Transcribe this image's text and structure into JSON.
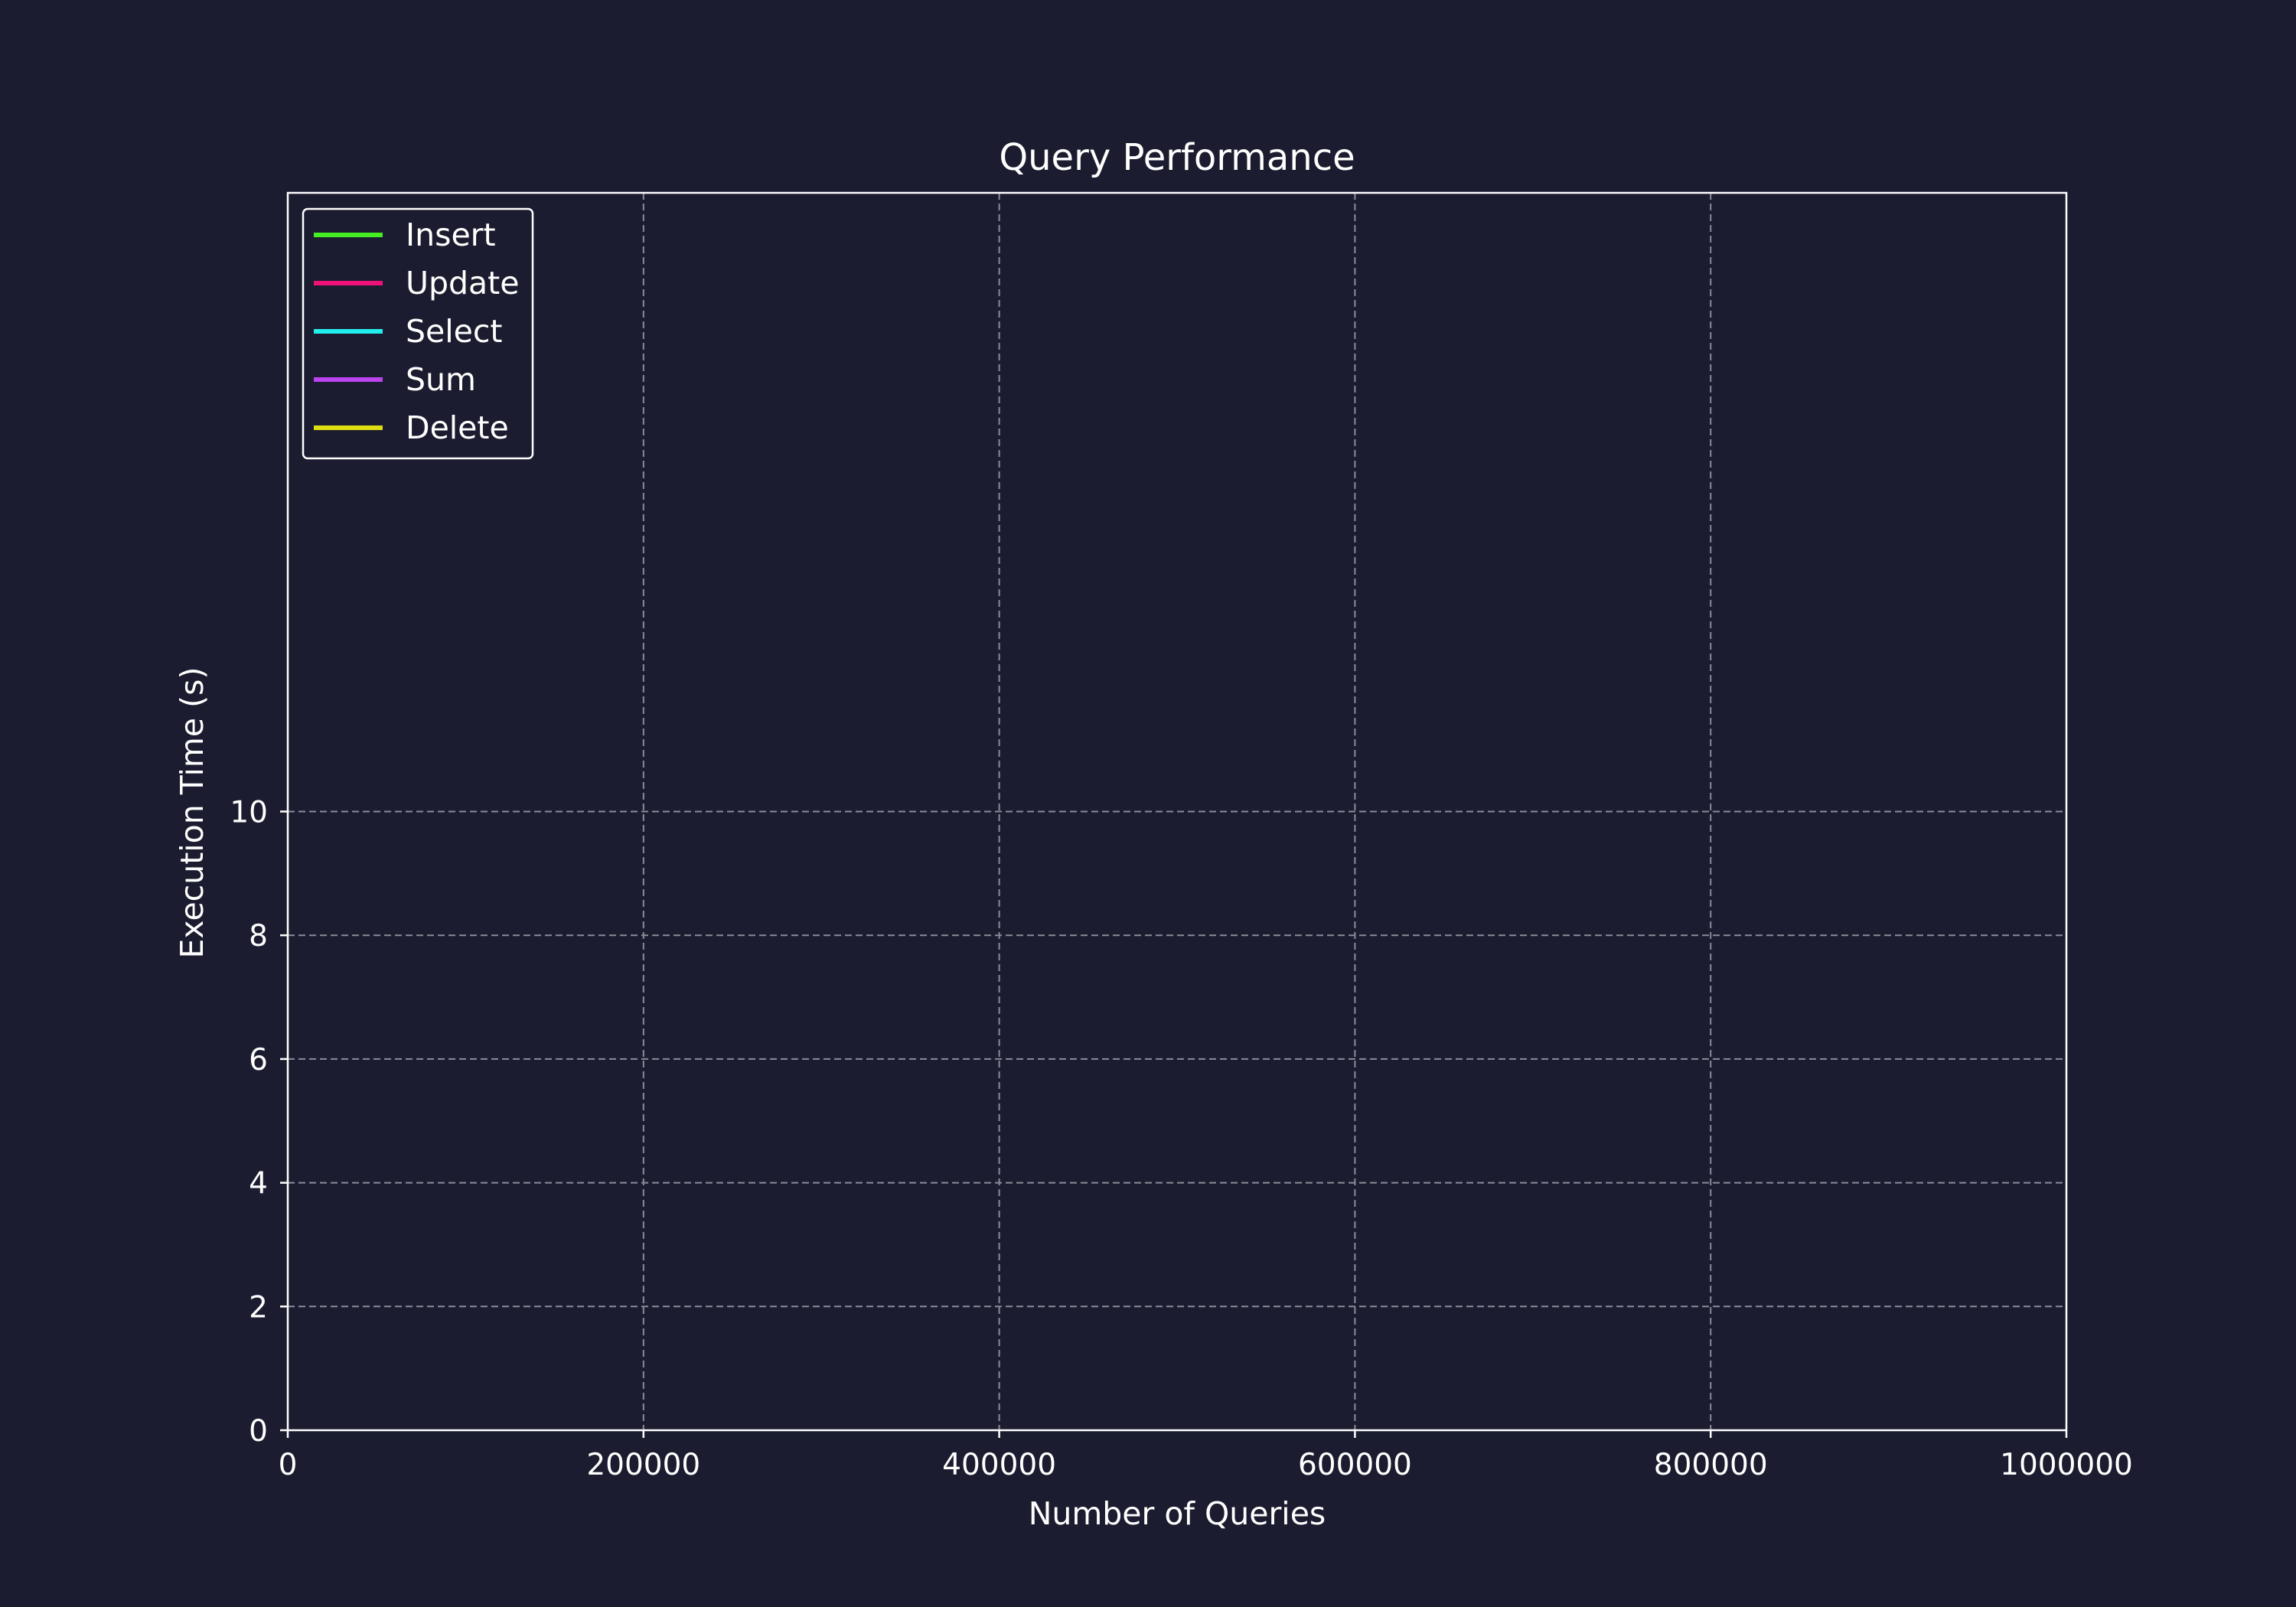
{
  "colors": {
    "background": "#1b1c2f",
    "axes": "#ffffff",
    "grid": "#8a8b99",
    "text": "#ffffff"
  },
  "chart_data": {
    "type": "line",
    "title": "Query Performance",
    "xlabel": "Number of Queries",
    "ylabel": "Execution Time (s)",
    "xlim": [
      0,
      1000000
    ],
    "ylim": [
      0,
      20
    ],
    "x_ticks": [
      "0",
      "200000",
      "400000",
      "600000",
      "800000",
      "1000000"
    ],
    "y_ticks": [
      "0",
      "2",
      "4",
      "6",
      "8",
      "10"
    ],
    "grid": true,
    "grid_style": "dashed",
    "legend_position": "top-left",
    "series": [
      {
        "name": "Insert",
        "color": "#44ee22",
        "x": [],
        "y": []
      },
      {
        "name": "Update",
        "color": "#ee1177",
        "x": [],
        "y": []
      },
      {
        "name": "Select",
        "color": "#22eeee",
        "x": [],
        "y": []
      },
      {
        "name": "Sum",
        "color": "#bb44ee",
        "x": [],
        "y": []
      },
      {
        "name": "Delete",
        "color": "#dddd11",
        "x": [],
        "y": []
      }
    ]
  }
}
